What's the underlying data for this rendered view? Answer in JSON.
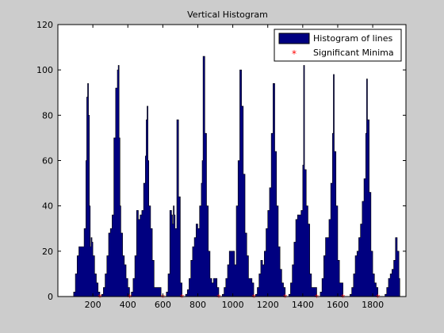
{
  "chart_data": {
    "type": "bar",
    "title": "Vertical Histogram",
    "xlabel": "",
    "ylabel": "",
    "xlim": [
      0,
      1990
    ],
    "ylim": [
      0,
      120
    ],
    "xticks": [
      200,
      400,
      600,
      800,
      1000,
      1200,
      1400,
      1600,
      1800
    ],
    "yticks": [
      0,
      20,
      40,
      60,
      80,
      100,
      120
    ],
    "grid": false,
    "legend": {
      "location": "top-right",
      "entries": [
        "Histogram of lines",
        "Significant Minima"
      ]
    },
    "colors": {
      "bars": "#000080",
      "minima": "#ff0000",
      "background": "#ffffff",
      "figure": "#cccccc"
    },
    "series": [
      {
        "name": "Histogram of lines",
        "kind": "histogram",
        "peaks": [
          {
            "x": [
              90,
              100,
              110,
              120,
              130,
              140,
              150,
              160,
              165,
              170,
              175,
              180,
              185,
              190,
              195,
              200,
              210,
              220,
              230,
              240
            ],
            "y": [
              2,
              10,
              18,
              22,
              22,
              22,
              30,
              60,
              88,
              94,
              80,
              40,
              22,
              26,
              24,
              18,
              10,
              6,
              2,
              0
            ]
          },
          {
            "x": [
              250,
              260,
              270,
              280,
              290,
              300,
              310,
              320,
              330,
              340,
              345,
              350,
              355,
              360,
              370,
              380,
              390,
              400,
              410
            ],
            "y": [
              1,
              4,
              10,
              18,
              28,
              30,
              36,
              70,
              92,
              100,
              102,
              70,
              40,
              28,
              18,
              14,
              8,
              4,
              0
            ]
          },
          {
            "x": [
              420,
              430,
              440,
              450,
              460,
              470,
              480,
              490,
              500,
              505,
              510,
              515,
              520,
              530,
              540,
              550,
              560,
              570,
              580,
              590
            ],
            "y": [
              2,
              8,
              18,
              38,
              34,
              36,
              38,
              50,
              62,
              78,
              84,
              60,
              40,
              30,
              16,
              4,
              4,
              4,
              4,
              0
            ]
          },
          {
            "x": [
              620,
              630,
              640,
              650,
              655,
              660,
              665,
              670,
              680,
              690,
              700,
              710
            ],
            "y": [
              2,
              10,
              38,
              36,
              32,
              40,
              36,
              30,
              78,
              44,
              6,
              0
            ]
          },
          {
            "x": [
              730,
              740,
              750,
              760,
              770,
              780,
              790,
              800,
              810,
              820,
              825,
              830,
              840,
              850,
              860,
              870,
              880,
              890,
              900,
              910,
              920
            ],
            "y": [
              1,
              3,
              8,
              16,
              22,
              26,
              32,
              30,
              40,
              50,
              60,
              106,
              72,
              40,
              20,
              8,
              6,
              8,
              8,
              4,
              0
            ]
          },
          {
            "x": [
              940,
              950,
              960,
              970,
              980,
              990,
              1000,
              1010,
              1020,
              1030,
              1040,
              1050,
              1060,
              1070,
              1080,
              1090,
              1100,
              1110,
              1120
            ],
            "y": [
              1,
              4,
              8,
              14,
              20,
              20,
              20,
              14,
              40,
              60,
              100,
              84,
              54,
              28,
              18,
              8,
              8,
              6,
              0
            ]
          },
          {
            "x": [
              1130,
              1140,
              1150,
              1160,
              1170,
              1180,
              1190,
              1200,
              1210,
              1220,
              1230,
              1240,
              1250,
              1260,
              1270,
              1280,
              1290,
              1300
            ],
            "y": [
              1,
              4,
              10,
              16,
              14,
              20,
              30,
              38,
              48,
              72,
              94,
              64,
              40,
              22,
              12,
              6,
              4,
              0
            ]
          },
          {
            "x": [
              1320,
              1330,
              1340,
              1350,
              1360,
              1370,
              1380,
              1390,
              1400,
              1405,
              1410,
              1420,
              1430,
              1440,
              1450,
              1460,
              1470,
              1480
            ],
            "y": [
              1,
              6,
              14,
              24,
              34,
              36,
              36,
              38,
              58,
              102,
              56,
              40,
              32,
              10,
              4,
              4,
              4,
              0
            ]
          },
          {
            "x": [
              1500,
              1510,
              1520,
              1530,
              1540,
              1550,
              1560,
              1570,
              1575,
              1580,
              1590,
              1600,
              1610,
              1620,
              1630
            ],
            "y": [
              2,
              8,
              18,
              26,
              26,
              34,
              50,
              72,
              98,
              64,
              40,
              16,
              6,
              6,
              0
            ]
          },
          {
            "x": [
              1670,
              1680,
              1690,
              1700,
              1710,
              1720,
              1730,
              1740,
              1750,
              1760,
              1765,
              1770,
              1780,
              1790,
              1800,
              1810,
              1820,
              1830
            ],
            "y": [
              1,
              4,
              10,
              18,
              20,
              26,
              32,
              42,
              52,
              72,
              96,
              78,
              46,
              20,
              10,
              6,
              4,
              0
            ]
          },
          {
            "x": [
              1870,
              1880,
              1890,
              1900,
              1910,
              1920,
              1930,
              1940,
              1950
            ],
            "y": [
              1,
              4,
              8,
              10,
              12,
              16,
              26,
              20,
              8
            ]
          }
        ]
      },
      {
        "name": "Significant Minima",
        "kind": "scatter",
        "marker": "*",
        "x": [
          240,
          410,
          600,
          710,
          920,
          1120,
          1300,
          1480,
          1630,
          1830
        ],
        "y": [
          0,
          0,
          0,
          0,
          0,
          0,
          0,
          0,
          0,
          0
        ]
      }
    ]
  }
}
